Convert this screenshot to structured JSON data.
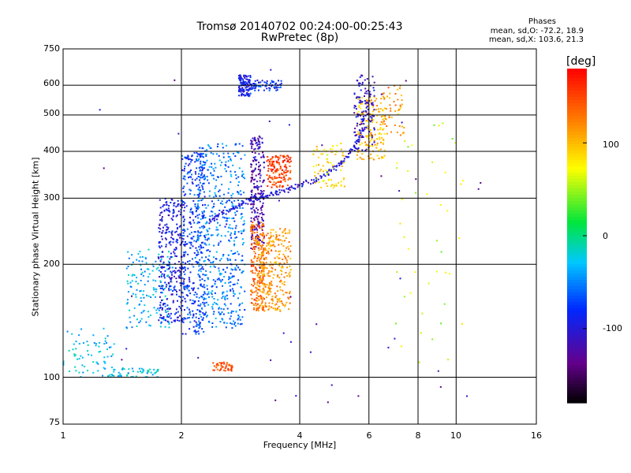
{
  "chart_data": {
    "type": "scatter",
    "title": "Tromsø 20140702 00:24:00-00:25:43",
    "subtitle": "RwPretec (8p)",
    "xlabel": "Frequency [MHz]",
    "ylabel": "Stationary phase Virtual Height [km]",
    "x_scale": "log",
    "y_scale": "log",
    "xlim": [
      1,
      16
    ],
    "ylim": [
      75,
      750
    ],
    "x_ticks": [
      "1",
      "2",
      "4",
      "6",
      "8",
      "10",
      "16"
    ],
    "y_ticks": [
      "75",
      "100",
      "200",
      "300",
      "400",
      "500",
      "600",
      "750"
    ],
    "grid_x": [
      2,
      4,
      6,
      8,
      10
    ],
    "grid_y": [
      100,
      200,
      300,
      400,
      500,
      600
    ],
    "colorbar": {
      "title": "[deg]",
      "ticks": [
        "100",
        "0",
        "-100"
      ],
      "range": [
        -180,
        180
      ]
    },
    "stats": {
      "header": "Phases",
      "line_o": "mean, sd,O: -72.2, 18.9",
      "line_x": "mean, sd,X: 103.6, 21.3"
    },
    "clusters": [
      {
        "x": [
          1.0,
          1.35
        ],
        "y": [
          100,
          135
        ],
        "phase": -30,
        "n": 70
      },
      {
        "x": [
          1.3,
          1.75
        ],
        "y": [
          100,
          106
        ],
        "phase": -25,
        "n": 60
      },
      {
        "x": [
          1.45,
          1.9
        ],
        "y": [
          135,
          220
        ],
        "phase": -35,
        "n": 160
      },
      {
        "x": [
          1.75,
          2.05
        ],
        "y": [
          140,
          300
        ],
        "phase": -95,
        "n": 320
      },
      {
        "x": [
          2.0,
          2.3
        ],
        "y": [
          130,
          400
        ],
        "phase": -75,
        "n": 360
      },
      {
        "x": [
          2.2,
          2.9
        ],
        "y": [
          135,
          420
        ],
        "phase": -55,
        "n": 520
      },
      {
        "x": [
          2.4,
          2.7
        ],
        "y": [
          104,
          110
        ],
        "phase": 145,
        "n": 50
      },
      {
        "x": [
          2.8,
          3.0
        ],
        "y": [
          560,
          640
        ],
        "phase": -95,
        "n": 120
      },
      {
        "x": [
          3.0,
          3.6
        ],
        "y": [
          580,
          620
        ],
        "phase": -80,
        "n": 70
      },
      {
        "x": [
          3.0,
          3.25
        ],
        "y": [
          220,
          440
        ],
        "phase": -120,
        "n": 220
      },
      {
        "x": [
          3.0,
          3.25
        ],
        "y": [
          150,
          260
        ],
        "phase": 140,
        "n": 180
      },
      {
        "x": [
          3.1,
          3.8
        ],
        "y": [
          150,
          250
        ],
        "phase": 115,
        "n": 320
      },
      {
        "x": [
          3.3,
          3.8
        ],
        "y": [
          320,
          390
        ],
        "phase": 150,
        "n": 150
      },
      {
        "x": [
          4.3,
          5.2
        ],
        "y": [
          320,
          420
        ],
        "phase": 85,
        "n": 80
      },
      {
        "x": [
          5.6,
          6.6
        ],
        "y": [
          380,
          560
        ],
        "phase": 100,
        "n": 160
      },
      {
        "x": [
          5.5,
          6.2
        ],
        "y": [
          400,
          640
        ],
        "phase": -110,
        "n": 110
      },
      {
        "x": [
          6.5,
          7.4
        ],
        "y": [
          440,
          600
        ],
        "phase": 115,
        "n": 50
      },
      {
        "x": [
          7.0,
          10.5
        ],
        "y": [
          100,
          600
        ],
        "phase": 60,
        "n": 45
      },
      {
        "x": [
          1.2,
          12.0
        ],
        "y": [
          85,
          680
        ],
        "phase": -120,
        "n": 45
      }
    ],
    "trace": {
      "x": [
        2.35,
        2.5,
        2.7,
        2.9,
        3.1,
        3.3,
        3.5,
        3.8,
        4.1,
        4.5,
        4.9,
        5.2,
        5.5,
        5.7,
        5.9,
        6.0
      ],
      "y": [
        260,
        270,
        282,
        292,
        300,
        305,
        310,
        318,
        328,
        340,
        360,
        380,
        405,
        440,
        500,
        580
      ],
      "phase": -100
    }
  }
}
